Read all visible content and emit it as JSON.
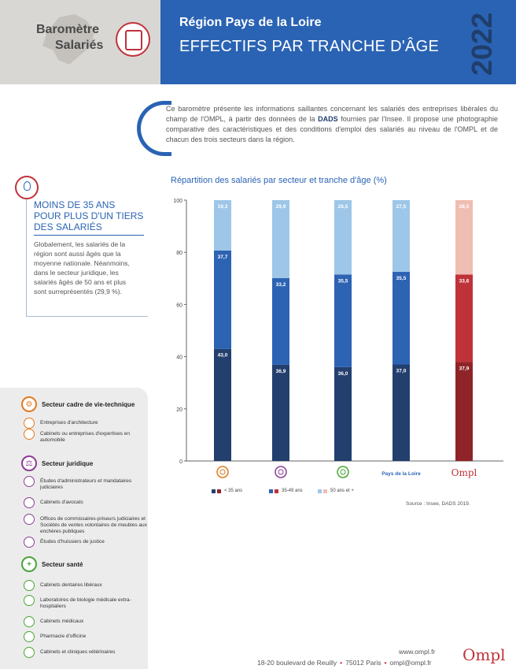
{
  "header": {
    "brand_line1": "Baromètre",
    "brand_line2": "Salariés",
    "region": "Région Pays de la Loire",
    "title": "EFFECTIFS PAR TRANCHE D'ÂGE",
    "year": "2022",
    "colors": {
      "band": "#2a63b4",
      "year": "#1f3e6b",
      "gray": "#d9d7d4",
      "accent": "#c0323a"
    }
  },
  "intro": {
    "part1": "Ce baromètre présente les informations saillantes concernant les salariés des entreprises libérales du champ de l'OMPL, à partir des données de la ",
    "dads": "DADS",
    "part2": " fournies par l'Insee. Il propose une photographie comparative des caractéristiques et des conditions d'emploi des salariés au niveau de l'OMPL et de chacun des trois secteurs dans la région."
  },
  "highlight": {
    "icon": "lightbulb-icon",
    "title": "MOINS DE 35 ANS POUR PLUS D'UN TIERS DES SALARIÉS",
    "text": "Globalement, les salariés de la région sont aussi âgés que la moyenne nationale. Néanmoins, dans le secteur juridique, les salariés âgés de 50 ans et plus sont surreprésentés (29,9 %)."
  },
  "sectors": [
    {
      "title": "Secteur cadre de vie-technique",
      "icon": "compass-gear-icon",
      "color": "#e07a1f",
      "items": [
        {
          "label": "Entreprises d'architecture",
          "icon": "architecture-icon"
        },
        {
          "label": "Cabinets ou entreprises d'expertises en automobile",
          "icon": "car-expertise-icon"
        }
      ]
    },
    {
      "title": "Secteur juridique",
      "icon": "scales-icon",
      "color": "#8a3d94",
      "items": [
        {
          "label": "Études d'administrateurs et mandataires judiciaires",
          "icon": "balance-icon"
        },
        {
          "label": "Cabinets d'avocats",
          "icon": "lawyer-icon"
        },
        {
          "label": "Offices de commissaires-priseurs judiciaires et Sociétés de ventes volontaires de meubles aux enchères publiques",
          "icon": "gavel-icon"
        },
        {
          "label": "Études d'huissiers de justice",
          "icon": "bailiff-icon"
        }
      ]
    },
    {
      "title": "Secteur santé",
      "icon": "cross-icon",
      "color": "#4aa536",
      "items": [
        {
          "label": "Cabinets dentaires libéraux",
          "icon": "tooth-icon"
        },
        {
          "label": "Laboratoires de biologie médicale extra-hospitaliers",
          "icon": "flask-icon"
        },
        {
          "label": "Cabinets médicaux",
          "icon": "stethoscope-icon"
        },
        {
          "label": "Pharmacie d'officine",
          "icon": "pharmacy-icon"
        },
        {
          "label": "Cabinets et cliniques vétérinaires",
          "icon": "paw-icon"
        }
      ]
    }
  ],
  "chart_data": {
    "type": "bar",
    "stacked": true,
    "title": "Répartition des salariés par secteur et tranche d'âge (%)",
    "categories": [
      "Secteur cadre de vie-technique",
      "Secteur juridique",
      "Secteur santé",
      "Pays de la Loire",
      "Ompl"
    ],
    "category_labels": [
      "",
      "",
      "",
      "Pays de la Loire",
      "Ompl"
    ],
    "category_icons": [
      "compass-gear-icon",
      "scales-icon",
      "cross-icon",
      "",
      "ompl-logo"
    ],
    "category_icon_colors": [
      "#e07a1f",
      "#8a3d94",
      "#4aa536",
      "",
      "#c0323a"
    ],
    "series": [
      {
        "name": "< 35 ans",
        "values": [
          43.0,
          36.9,
          36.0,
          37.0,
          37.9
        ],
        "labels": [
          "43,0",
          "36,9",
          "36,0",
          "37,0",
          "37,9"
        ],
        "color": "#233f6e",
        "highlight_color": "#8f2428"
      },
      {
        "name": "35-49 ans",
        "values": [
          37.7,
          33.2,
          35.5,
          35.5,
          33.6
        ],
        "labels": [
          "37,7",
          "33,2",
          "35,5",
          "35,5",
          "33,6"
        ],
        "color": "#2c63b3",
        "highlight_color": "#c0323a"
      },
      {
        "name": "50 ans et +",
        "values": [
          19.3,
          29.9,
          28.5,
          27.5,
          28.5
        ],
        "labels": [
          "19,3",
          "29,9",
          "28,5",
          "27,5",
          "28,5"
        ],
        "color": "#9dc6e8",
        "highlight_color": "#f0bdb2"
      }
    ],
    "ylim": [
      0,
      100
    ],
    "yticks": [
      0,
      20,
      40,
      60,
      80,
      100
    ],
    "grid": false,
    "legend_position": "bottom",
    "source": "Source : Insee, DADS 2019."
  },
  "footer": {
    "web": "www.ompl.fr",
    "address": "18-20 boulevard de Reuilly",
    "city": "75012 Paris",
    "email": "ompl@ompl.fr",
    "logo": "Ompl"
  }
}
